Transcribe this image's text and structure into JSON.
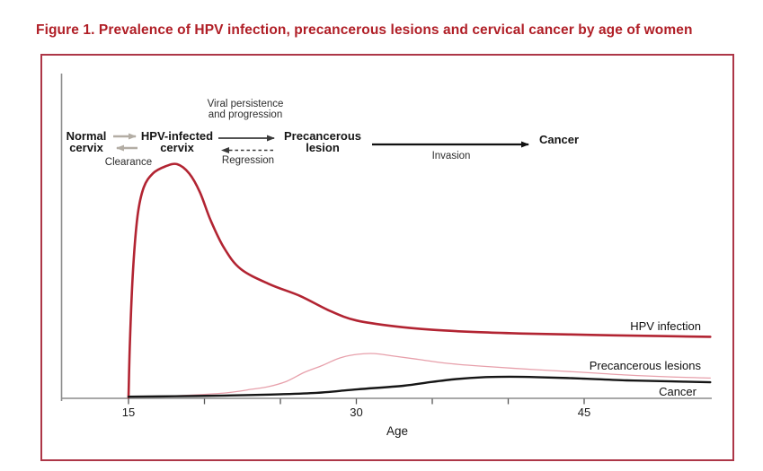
{
  "page": {
    "title": "Figure 1. Prevalence of HPV infection, precancerous lesions and cervical cancer by age of women"
  },
  "colors": {
    "title_red": "#b01e26",
    "border_red": "#ad3647",
    "hpv_curve_red": "#b22432",
    "precancerous_curve_pink": "#e7a0ab",
    "cancer_curve_black": "#161616",
    "axis_gray": "#8b8b8b",
    "light_arrow_gray": "#b3ada4",
    "dark_arrow_gray": "#3a3a3a"
  },
  "flow": {
    "stage_normal": "Normal\ncervix",
    "stage_hpv": "HPV-infected\ncervix",
    "stage_precancerous": "Precancerous\nlesion",
    "stage_cancer": "Cancer",
    "label_persistence": "Viral persistence\nand progression",
    "label_clearance": "Clearance",
    "label_regression": "Regression",
    "label_invasion": "Invasion"
  },
  "chart_data": {
    "type": "line",
    "title": "Prevalence of HPV infection, precancerous lesions and cervical cancer by age of women",
    "xlabel": "Age",
    "ylabel": "",
    "x_ticks": [
      15,
      20,
      25,
      30,
      35,
      40,
      45
    ],
    "x_labeled_ticks": [
      15,
      30,
      45
    ],
    "x_range_years": [
      10.5,
      53.3
    ],
    "y_axis_labeled": false,
    "y_range_relative": [
      0,
      100
    ],
    "grid": false,
    "legend_position": "end-of-line labels at right",
    "series": [
      {
        "id": "hpv-infection",
        "name": "HPV infection",
        "color": "#b22432",
        "width": 2.6,
        "dash": "",
        "points": [
          [
            15,
            0
          ],
          [
            15.1,
            25
          ],
          [
            15.3,
            55
          ],
          [
            15.6,
            78
          ],
          [
            16,
            90
          ],
          [
            16.6,
            96
          ],
          [
            17.4,
            99
          ],
          [
            18.2,
            100
          ],
          [
            19,
            96
          ],
          [
            19.7,
            88
          ],
          [
            20.4,
            76
          ],
          [
            21.3,
            64
          ],
          [
            22.4,
            55
          ],
          [
            24.3,
            48.5
          ],
          [
            26.3,
            43.5
          ],
          [
            28.3,
            37
          ],
          [
            30,
            33
          ],
          [
            32.5,
            30.5
          ],
          [
            35,
            29
          ],
          [
            38,
            28
          ],
          [
            41,
            27.4
          ],
          [
            44,
            27
          ],
          [
            47,
            26.6
          ],
          [
            50,
            26.3
          ],
          [
            53.3,
            26
          ]
        ]
      },
      {
        "id": "precancerous-lesions",
        "name": "Precancerous lesions",
        "color": "#e7a0ab",
        "width": 1.3,
        "dash": "",
        "points": [
          [
            15.5,
            0.2
          ],
          [
            17,
            0.4
          ],
          [
            18.5,
            0.8
          ],
          [
            21.3,
            1.9
          ],
          [
            23.1,
            3.5
          ],
          [
            24.2,
            4.6
          ],
          [
            25.4,
            6.9
          ],
          [
            26.6,
            10.8
          ],
          [
            27.8,
            13.8
          ],
          [
            28.9,
            16.9
          ],
          [
            30.1,
            18.5
          ],
          [
            31.2,
            18.8
          ],
          [
            32.5,
            17.7
          ],
          [
            34.2,
            16.2
          ],
          [
            36,
            14.6
          ],
          [
            38.9,
            13.1
          ],
          [
            41.9,
            11.9
          ],
          [
            44.8,
            10.8
          ],
          [
            47.8,
            9.6
          ],
          [
            50.7,
            8.8
          ],
          [
            53.3,
            8.3
          ]
        ]
      },
      {
        "id": "cancer",
        "name": "Cancer",
        "color": "#161616",
        "width": 2.4,
        "dash": "",
        "points": [
          [
            15,
            0.3
          ],
          [
            18,
            0.5
          ],
          [
            21.3,
            0.8
          ],
          [
            24,
            1.2
          ],
          [
            27.2,
            1.9
          ],
          [
            30.1,
            3.5
          ],
          [
            33.1,
            5
          ],
          [
            34.8,
            6.5
          ],
          [
            36.6,
            7.9
          ],
          [
            38.4,
            8.7
          ],
          [
            40.1,
            8.9
          ],
          [
            41.9,
            8.7
          ],
          [
            44.8,
            8.1
          ],
          [
            47.8,
            7.3
          ],
          [
            50.7,
            6.9
          ],
          [
            53.3,
            6.5
          ]
        ]
      }
    ]
  }
}
